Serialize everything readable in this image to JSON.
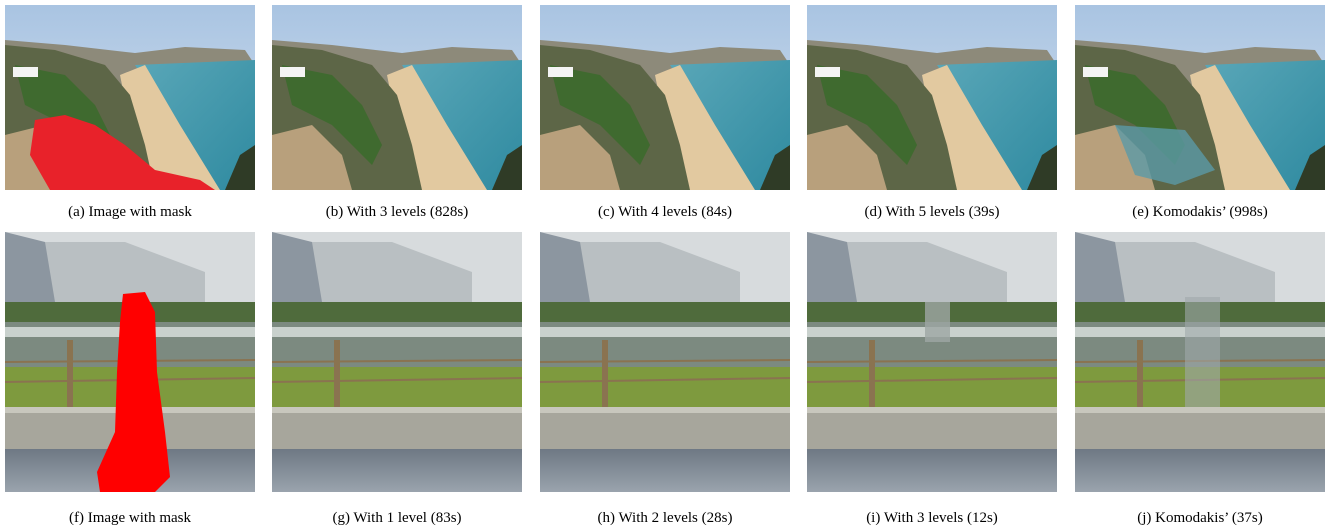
{
  "figure": {
    "rows": [
      {
        "captions": [
          "(a) Image with mask",
          "(b) With 3 levels (828s)",
          "(c) With 4 levels (84s)",
          "(d) With 5 levels (39s)",
          "(e) Komodakis’ (998s)"
        ]
      },
      {
        "captions": [
          "(f) Image with mask",
          "(g) With 1 level (83s)",
          "(h) With 2 levels (28s)",
          "(i) With 3 levels (12s)",
          "(j) Komodakis’ (37s)"
        ]
      }
    ]
  }
}
